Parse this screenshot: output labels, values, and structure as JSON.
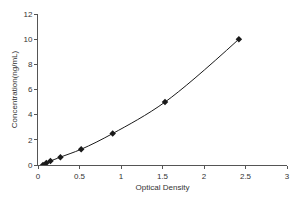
{
  "chart_data": {
    "type": "line",
    "x_label": "Optical Density",
    "y_label": "Concentration(ng/mL)",
    "x": [
      0.06,
      0.1,
      0.15,
      0.27,
      0.52,
      0.9,
      1.53,
      2.42
    ],
    "values": [
      0,
      0.156,
      0.312,
      0.625,
      1.25,
      2.5,
      5,
      10
    ],
    "color": "#1a1a1a",
    "marker": "diamond",
    "line_style": "solid",
    "xlim": [
      0,
      3
    ],
    "xticks": [
      0,
      0.5,
      1,
      1.5,
      2,
      2.5,
      3
    ],
    "ylim": [
      0,
      12
    ],
    "yticks": [
      0,
      2,
      4,
      6,
      8,
      10,
      12
    ],
    "grid": false
  }
}
